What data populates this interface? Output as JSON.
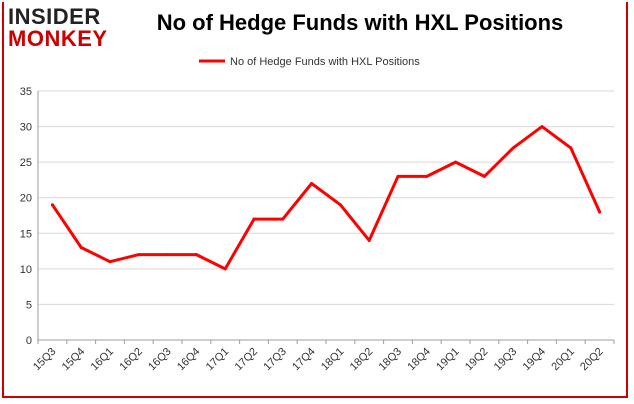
{
  "logo": {
    "line1": "INSIDER",
    "line2": "MONKEY"
  },
  "colors": {
    "series": "#ff0000",
    "brand": "#cc0000",
    "grid": "#d9d9d9",
    "axis": "#9e9e9e"
  },
  "chart_data": {
    "type": "line",
    "title": "No of Hedge Funds with HXL Positions",
    "xlabel": "",
    "ylabel": "",
    "ylim": [
      0,
      35
    ],
    "yticks": [
      0,
      5,
      10,
      15,
      20,
      25,
      30,
      35
    ],
    "grid": true,
    "legend": "top-center",
    "categories": [
      "15Q3",
      "15Q4",
      "16Q1",
      "16Q2",
      "16Q3",
      "16Q4",
      "17Q1",
      "17Q2",
      "17Q3",
      "17Q4",
      "18Q1",
      "18Q2",
      "18Q3",
      "18Q4",
      "19Q1",
      "19Q2",
      "19Q3",
      "19Q4",
      "20Q1",
      "20Q2"
    ],
    "series": [
      {
        "name": "No of Hedge Funds with HXL Positions",
        "values": [
          19,
          13,
          11,
          12,
          12,
          12,
          10,
          17,
          17,
          22,
          19,
          14,
          23,
          23,
          25,
          23,
          27,
          30,
          27,
          18
        ]
      }
    ]
  }
}
